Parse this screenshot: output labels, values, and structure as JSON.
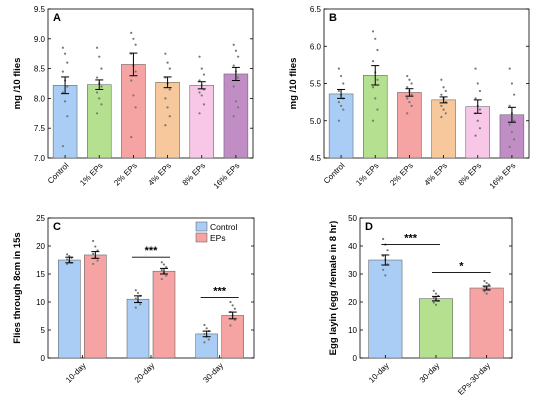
{
  "chart_data": [
    {
      "panel": "A",
      "type": "bar",
      "ylabel": "mg /10 flies",
      "ylim": [
        7.0,
        9.5
      ],
      "yticks": [
        "7.0",
        "7.5",
        "8.0",
        "8.5",
        "9.0",
        "9.5"
      ],
      "categories": [
        "Control",
        "1% EPs",
        "2% EPs",
        "4% EPs",
        "8% EPs",
        "16% EPs"
      ],
      "values": [
        8.22,
        8.23,
        8.57,
        8.27,
        8.22,
        8.41
      ],
      "errors": [
        0.14,
        0.08,
        0.19,
        0.09,
        0.06,
        0.11
      ],
      "colors": [
        "#a9cdf5",
        "#b5e08f",
        "#f5a3a3",
        "#f7c89b",
        "#f8c6e6",
        "#c08ec5"
      ],
      "points": [
        [
          8.85,
          8.75,
          8.6,
          8.45,
          8.3,
          8.2,
          8.1,
          7.95,
          7.7,
          7.2
        ],
        [
          8.85,
          8.7,
          8.5,
          8.35,
          8.25,
          8.2,
          8.1,
          8.0,
          7.9,
          7.75
        ],
        [
          9.1,
          9.0,
          8.9,
          8.75,
          8.55,
          8.45,
          8.3,
          8.05,
          7.85,
          7.35
        ],
        [
          8.75,
          8.6,
          8.5,
          8.35,
          8.25,
          8.15,
          8.0,
          7.85,
          7.7,
          7.55
        ],
        [
          8.7,
          8.5,
          8.4,
          8.3,
          8.22,
          8.15,
          8.1,
          8.05,
          7.9,
          7.75
        ],
        [
          8.9,
          8.8,
          8.7,
          8.55,
          8.45,
          8.35,
          8.2,
          7.95,
          7.85,
          7.7
        ]
      ]
    },
    {
      "panel": "B",
      "type": "bar",
      "ylabel": "mg /10 flies",
      "ylim": [
        4.5,
        6.5
      ],
      "yticks": [
        "4.5",
        "5.0",
        "5.5",
        "6.0",
        "6.5"
      ],
      "categories": [
        "Control",
        "1% EPs",
        "2% EPs",
        "4% EPs",
        "8% EPs",
        "16% EPs"
      ],
      "values": [
        5.36,
        5.61,
        5.38,
        5.28,
        5.19,
        5.08
      ],
      "errors": [
        0.06,
        0.13,
        0.05,
        0.04,
        0.09,
        0.1
      ],
      "colors": [
        "#a9cdf5",
        "#b5e08f",
        "#f5a3a3",
        "#f7c89b",
        "#f8c6e6",
        "#c08ec5"
      ],
      "points": [
        [
          5.7,
          5.6,
          5.5,
          5.4,
          5.35,
          5.3,
          5.25,
          5.2,
          5.15,
          5.0
        ],
        [
          6.2,
          6.1,
          5.95,
          5.8,
          5.65,
          5.55,
          5.45,
          5.3,
          5.15,
          5.0
        ],
        [
          5.6,
          5.55,
          5.5,
          5.45,
          5.4,
          5.35,
          5.3,
          5.25,
          5.2,
          5.1
        ],
        [
          5.55,
          5.45,
          5.4,
          5.35,
          5.3,
          5.25,
          5.2,
          5.15,
          5.1,
          5.05
        ],
        [
          5.7,
          5.5,
          5.4,
          5.3,
          5.2,
          5.15,
          5.1,
          5.0,
          4.9,
          4.8
        ],
        [
          5.7,
          5.5,
          5.35,
          5.2,
          5.1,
          5.0,
          4.95,
          4.85,
          4.75,
          4.65
        ]
      ]
    },
    {
      "panel": "C",
      "type": "bar",
      "ylabel": "Flies through  8cm in 15s",
      "ylim": [
        0,
        25
      ],
      "yticks": [
        "0",
        "5",
        "10",
        "15",
        "20",
        "25"
      ],
      "categories": [
        "10-day",
        "20-day",
        "30-day"
      ],
      "legend_position": "top-right",
      "series": [
        {
          "name": "Control",
          "color": "#a9cdf5",
          "values": [
            17.5,
            10.5,
            4.3
          ],
          "errors": [
            0.5,
            0.6,
            0.5
          ],
          "points": [
            [
              18.5,
              18.2,
              17.9,
              17.6,
              17.3,
              17.0,
              16.8
            ],
            [
              12.1,
              11.6,
              11.1,
              10.6,
              10.1,
              9.6,
              9.0
            ],
            [
              5.9,
              5.3,
              4.8,
              4.3,
              3.8,
              3.3,
              2.8
            ]
          ]
        },
        {
          "name": "EPs",
          "color": "#f5a3a3",
          "values": [
            18.4,
            15.5,
            7.6
          ],
          "errors": [
            0.6,
            0.5,
            0.6
          ],
          "points": [
            [
              20.9,
              19.9,
              19.2,
              18.6,
              18.0,
              17.4,
              16.8
            ],
            [
              17.1,
              16.7,
              16.2,
              15.7,
              15.2,
              14.7,
              14.1
            ],
            [
              10.0,
              9.4,
              8.8,
              8.2,
              7.6,
              6.8,
              5.8
            ]
          ]
        }
      ],
      "significance": [
        {
          "label": "***",
          "between": "20-day Control vs EPs",
          "y": 18.0
        },
        {
          "label": "***",
          "between": "30-day Control vs EPs",
          "y": 10.8
        }
      ]
    },
    {
      "panel": "D",
      "type": "bar",
      "ylabel": "Egg layin (egg /female in 8 hr)",
      "ylim": [
        0,
        50
      ],
      "yticks": [
        "0",
        "10",
        "20",
        "30",
        "40",
        "50"
      ],
      "categories": [
        "10-day",
        "30-day",
        "EPs-30-day"
      ],
      "values": [
        35.0,
        21.2,
        25.0
      ],
      "errors": [
        1.8,
        0.8,
        0.7
      ],
      "colors": [
        "#a9cdf5",
        "#b5e08f",
        "#f5a3a3"
      ],
      "points": [
        [
          42.5,
          40.5,
          38.5,
          36.5,
          35.0,
          33.5,
          31.5,
          29.5
        ],
        [
          24.0,
          23.0,
          22.2,
          21.5,
          21.0,
          20.4,
          19.8,
          19.0
        ],
        [
          27.5,
          26.8,
          26.2,
          25.5,
          25.0,
          24.4,
          23.8,
          23.0
        ]
      ],
      "significance": [
        {
          "label": "***",
          "between": "10-day vs 30-day",
          "y": 40.5
        },
        {
          "label": "*",
          "between": "30-day vs EPs-30-day",
          "y": 30.5
        }
      ]
    }
  ]
}
